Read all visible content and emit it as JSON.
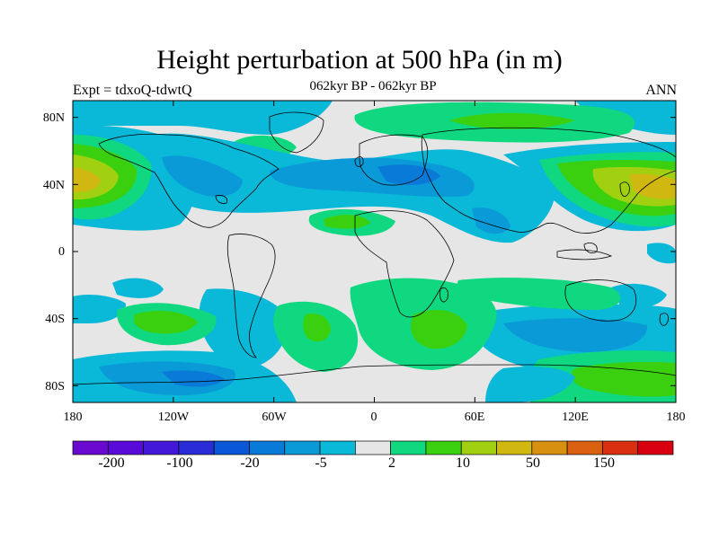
{
  "figure": {
    "title": "Height perturbation at 500 hPa (in m)",
    "left_label": "Expt = tdxoQ-tdwtQ",
    "center_label": "062kyr BP - 062kyr BP",
    "right_label": "ANN"
  },
  "axes": {
    "lat_ticks": [
      {
        "label": "80N",
        "value": 80
      },
      {
        "label": "40N",
        "value": 40
      },
      {
        "label": "0",
        "value": 0
      },
      {
        "label": "40S",
        "value": -40
      },
      {
        "label": "80S",
        "value": -80
      }
    ],
    "lon_ticks": [
      {
        "label": "180",
        "value": -180
      },
      {
        "label": "120W",
        "value": -120
      },
      {
        "label": "60W",
        "value": -60
      },
      {
        "label": "0",
        "value": 0
      },
      {
        "label": "60E",
        "value": 60
      },
      {
        "label": "120E",
        "value": 120
      },
      {
        "label": "180",
        "value": 180
      }
    ],
    "lon_range": [
      -180,
      180
    ],
    "lat_range": [
      -90,
      90
    ]
  },
  "colorbar": {
    "colors": [
      "#6a0ad0",
      "#5a0ad8",
      "#4418d8",
      "#2a2cd8",
      "#0a58d8",
      "#0a7ad8",
      "#0a9ad8",
      "#0ab8d8",
      "#e6e6e6",
      "#10d880",
      "#3ad010",
      "#a0d010",
      "#d0b810",
      "#d89010",
      "#d86010",
      "#d83010",
      "#d80010"
    ],
    "labels": [
      "-200",
      "-100",
      "-20",
      "-5",
      "2",
      "10",
      "50",
      "150"
    ],
    "label_after_box": [
      1,
      3,
      5,
      7,
      8,
      10,
      12,
      14
    ]
  },
  "map_colors": {
    "neutral": "#e6e6e6",
    "neg_light": "#0ab8d8",
    "neg_mid": "#0a9ad8",
    "neg_dark": "#0a7ad8",
    "pos_light": "#10d880",
    "pos_mid": "#3ad010",
    "pos_high": "#a0d010",
    "pos_top": "#d0b810",
    "coast": "#000000"
  }
}
